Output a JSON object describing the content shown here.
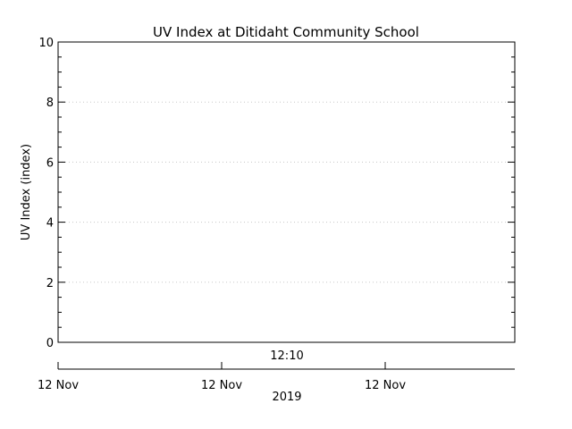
{
  "chart_data": {
    "type": "line",
    "title": "UV Index at Ditidaht Community School",
    "ylabel": "UV Index (index)",
    "xlabel": "2019",
    "ylim": [
      0,
      10
    ],
    "y_ticks": [
      "0",
      "2",
      "4",
      "6",
      "8",
      "10"
    ],
    "x_time_label": "12:10",
    "x_tick_labels": [
      "12 Nov",
      "12 Nov",
      "12 Nov"
    ],
    "grid": true,
    "series": []
  }
}
